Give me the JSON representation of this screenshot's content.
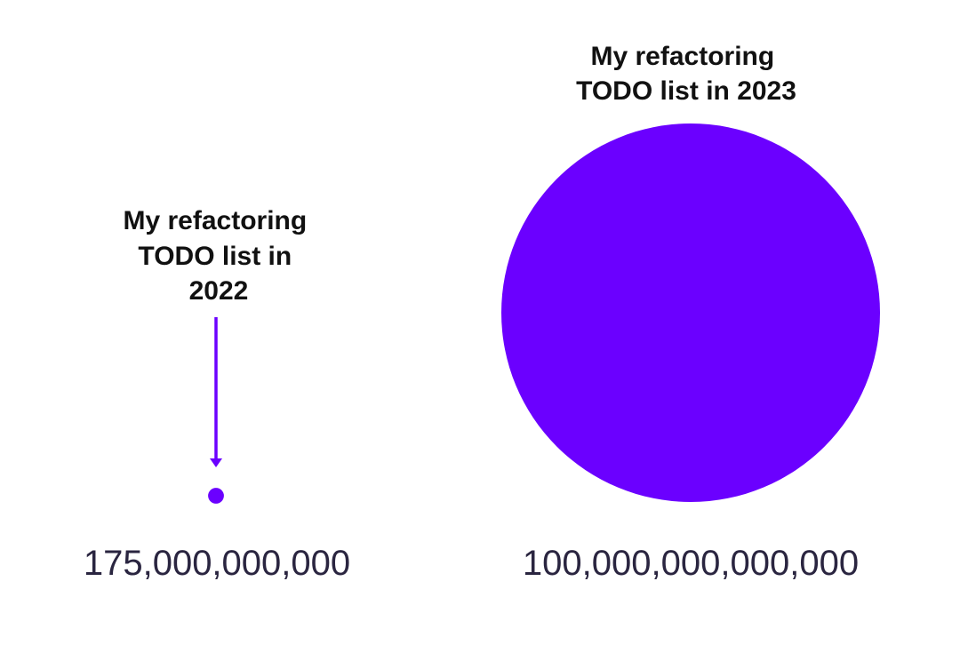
{
  "chart_data": {
    "type": "bubble",
    "items": [
      {
        "label_lines": [
          "My refactoring",
          "TODO list in",
          "2022"
        ],
        "value": 175000000000,
        "value_label": "175,000,000,000"
      },
      {
        "label_lines": [
          "My refactoring",
          "TODO list in 2023"
        ],
        "value": 100000000000000,
        "value_label": "100,000,000,000,000"
      }
    ],
    "colors": {
      "bubble": "#6b00ff",
      "arrow": "#6b00ff",
      "title": "#111111",
      "value": "#2a2540"
    }
  }
}
